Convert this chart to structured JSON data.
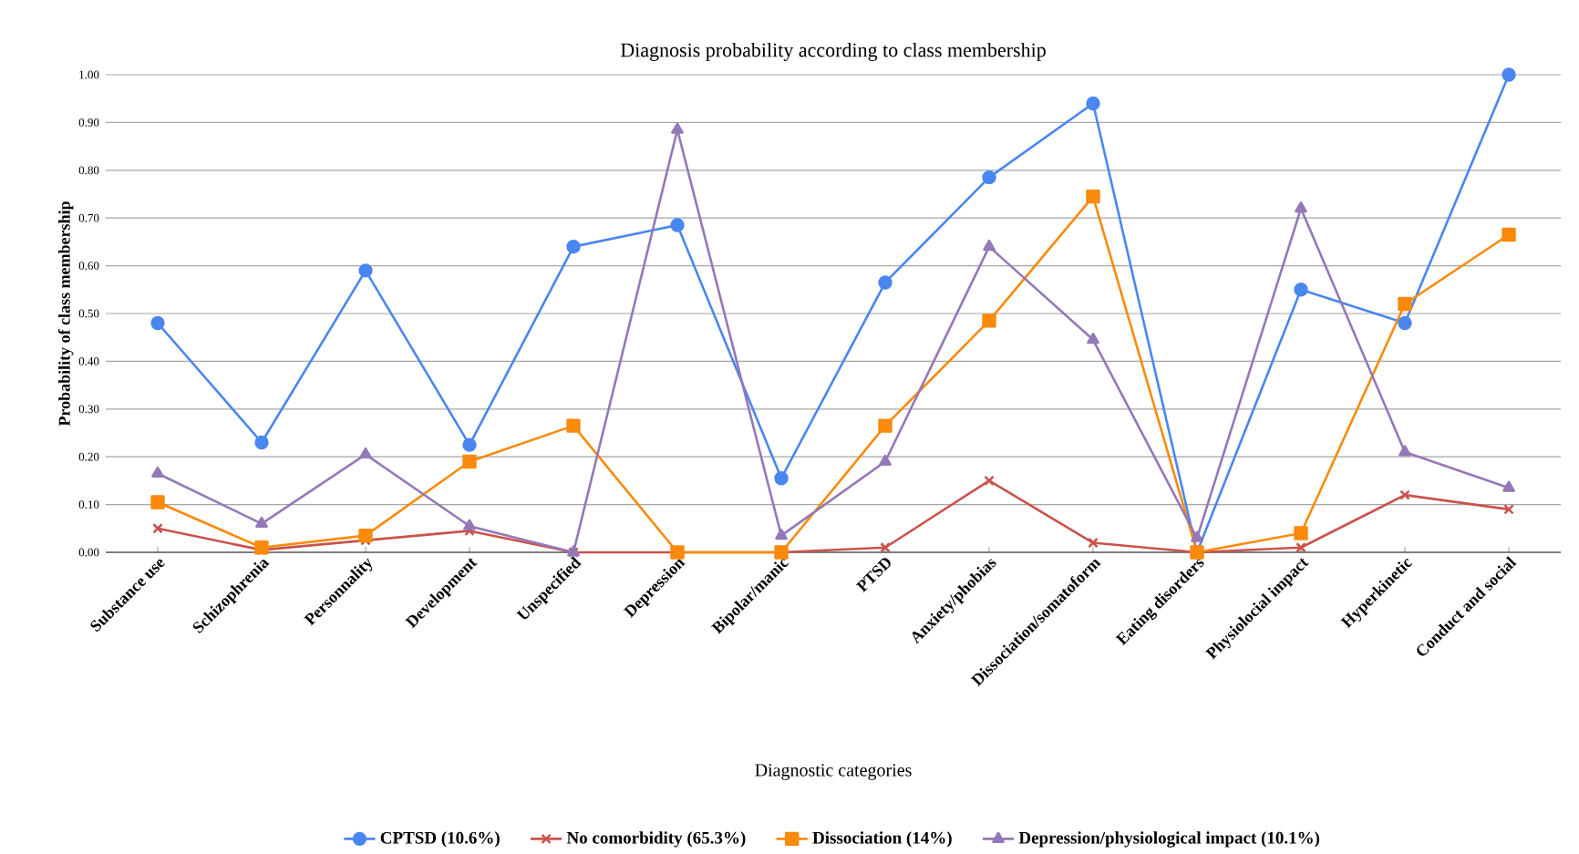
{
  "chart_data": {
    "type": "line",
    "title": "Diagnosis probability according to class membership",
    "xlabel": "Diagnostic categories",
    "ylabel": "Probability of class membership",
    "categories": [
      "Substance use",
      "Schizophrenia",
      "Personnality",
      "Development",
      "Unspecified",
      "Depression",
      "Bipolar/manic",
      "PTSD",
      "Anxiety/phobias",
      "Dissociation/somatoform",
      "Eating disorders",
      "Physiolocial impact",
      "Hyperkinetic",
      "Conduct and social"
    ],
    "series": [
      {
        "name": "CPTSD (10.6%)",
        "color": "#4a86f0",
        "marker": "circle",
        "values": [
          0.48,
          0.23,
          0.59,
          0.225,
          0.64,
          0.685,
          0.155,
          0.565,
          0.785,
          0.94,
          0.0,
          0.55,
          0.48,
          1.0
        ]
      },
      {
        "name": "No comorbidity (65.3%)",
        "color": "#c9534c",
        "marker": "cross",
        "values": [
          0.05,
          0.005,
          0.025,
          0.045,
          0.0,
          0.0,
          0.0,
          0.01,
          0.15,
          0.02,
          0.0,
          0.01,
          0.12,
          0.09
        ]
      },
      {
        "name": "Dissociation (14%)",
        "color": "#f98a0c",
        "marker": "square",
        "values": [
          0.105,
          0.01,
          0.035,
          0.19,
          0.265,
          0.0,
          0.0,
          0.265,
          0.485,
          0.745,
          0.0,
          0.04,
          0.52,
          0.665
        ]
      },
      {
        "name": "Depression/physiological impact (10.1%)",
        "color": "#9478b8",
        "marker": "triangle",
        "values": [
          0.165,
          0.06,
          0.205,
          0.055,
          0.0,
          0.885,
          0.035,
          0.19,
          0.64,
          0.445,
          0.03,
          0.72,
          0.21,
          0.135
        ]
      }
    ],
    "ylim": [
      0,
      1
    ],
    "yticks": [
      {
        "value": 0,
        "label": "0.00"
      },
      {
        "value": 0.1,
        "label": "0.10"
      },
      {
        "value": 0.2,
        "label": "0.20"
      },
      {
        "value": 0.3,
        "label": "0.30"
      },
      {
        "value": 0.4,
        "label": "0.40"
      },
      {
        "value": 0.5,
        "label": "0.50"
      },
      {
        "value": 0.6,
        "label": "0.60"
      },
      {
        "value": 0.7,
        "label": "0.70"
      },
      {
        "value": 0.8,
        "label": "0.80"
      },
      {
        "value": 0.9,
        "label": "0.90"
      },
      {
        "value": 1,
        "label": "1.00"
      }
    ],
    "grid": "y",
    "legend": "bottom",
    "line_style": "solid"
  }
}
